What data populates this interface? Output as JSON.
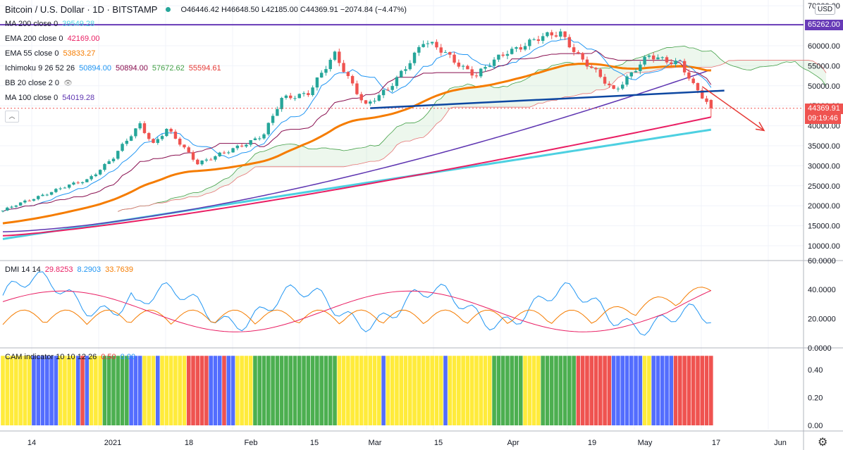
{
  "header": {
    "symbol": "Bitcoin / U.S. Dollar · 1D · BITSTAMP",
    "ohlc": "O46446.42 H46648.50 L42185.00 C44369.91 −2074.84 (−4.47%)"
  },
  "currency_button": "USD",
  "price_axis": {
    "labels": [
      "70000.00",
      "60000.00",
      "55000.00",
      "50000.00",
      "45000.00",
      "40000.00",
      "35000.00",
      "30000.00",
      "25000.00",
      "20000.00",
      "15000.00",
      "10000.00"
    ],
    "values": [
      70000,
      60000,
      55000,
      50000,
      45000,
      40000,
      35000,
      30000,
      25000,
      20000,
      15000,
      10000
    ],
    "tag_level": "65262.00",
    "tag_last": "44369.91",
    "tag_countdown": "09:19:46"
  },
  "dmi_axis": {
    "labels": [
      "60.0000",
      "40.0000",
      "20.0000",
      "0.0000"
    ],
    "values": [
      60,
      40,
      20,
      0
    ]
  },
  "cam_axis": {
    "labels": [
      "0.40",
      "0.20",
      "0.00"
    ],
    "values": [
      0.4,
      0.2,
      0.0
    ]
  },
  "time_axis": {
    "labels": [
      "14",
      "2021",
      "18",
      "Feb",
      "15",
      "Mar",
      "15",
      "Apr",
      "19",
      "May",
      "17",
      "Jun"
    ]
  },
  "legend": [
    {
      "label": "MA 200 close 0",
      "values": [
        {
          "v": "39549.28",
          "color": "#4dd0e1"
        }
      ]
    },
    {
      "label": "EMA 200 close 0",
      "values": [
        {
          "v": "42169.00",
          "color": "#e91e63"
        }
      ]
    },
    {
      "label": "EMA 55 close 0",
      "values": [
        {
          "v": "53833.27",
          "color": "#f57c00"
        }
      ]
    },
    {
      "label": "Ichimoku 9 26 52 26",
      "values": [
        {
          "v": "50894.00",
          "color": "#2196f3"
        },
        {
          "v": "50894.00",
          "color": "#880e4f"
        },
        {
          "v": "57672.62",
          "color": "#43a047"
        },
        {
          "v": "55594.61",
          "color": "#e53935"
        }
      ]
    },
    {
      "label": "BB 20 close 2 0",
      "values": []
    },
    {
      "label": "MA 100 close 0",
      "values": [
        {
          "v": "54019.28",
          "color": "#5e35b1"
        }
      ]
    }
  ],
  "dmi_legend": {
    "label": "DMI 14 14",
    "values": [
      {
        "v": "29.8253",
        "color": "#e91e63"
      },
      {
        "v": "8.2903",
        "color": "#2196f3"
      },
      {
        "v": "33.7639",
        "color": "#f57c00"
      }
    ]
  },
  "cam_legend": {
    "label": "CAM indicator 10 10 12 26",
    "values": [
      {
        "v": "0.50",
        "color": "#e53935"
      },
      {
        "v": "0.00",
        "color": "#2196f3"
      }
    ]
  },
  "colors": {
    "up": "#26a69a",
    "down": "#ef5350",
    "level": "#673ab7",
    "trend": "#0d47a1",
    "arrow": "#e53935"
  },
  "chart_data": {
    "type": "candlestick",
    "title": "Bitcoin / U.S. Dollar · 1D · BITSTAMP",
    "last_close": 44369.91,
    "horizontal_level": 65262.0,
    "ylim": [
      7000,
      71000
    ],
    "approx_close_path": [
      {
        "x": "Dec 8",
        "close": 18800
      },
      {
        "x": "Dec 17",
        "close": 22800
      },
      {
        "x": "Dec 27",
        "close": 26500
      },
      {
        "x": "Jan 2",
        "close": 32000
      },
      {
        "x": "Jan 8",
        "close": 40500
      },
      {
        "x": "Jan 11",
        "close": 35500
      },
      {
        "x": "Jan 14",
        "close": 39000
      },
      {
        "x": "Jan 21",
        "close": 30800
      },
      {
        "x": "Jan 28",
        "close": 33500
      },
      {
        "x": "Feb 5",
        "close": 38000
      },
      {
        "x": "Feb 9",
        "close": 46500
      },
      {
        "x": "Feb 15",
        "close": 48500
      },
      {
        "x": "Feb 21",
        "close": 57500
      },
      {
        "x": "Feb 28",
        "close": 45200
      },
      {
        "x": "Mar 5",
        "close": 48800
      },
      {
        "x": "Mar 13",
        "close": 61100
      },
      {
        "x": "Mar 18",
        "close": 58000
      },
      {
        "x": "Mar 25",
        "close": 52500
      },
      {
        "x": "Apr 1",
        "close": 58800
      },
      {
        "x": "Apr 13",
        "close": 63500
      },
      {
        "x": "Apr 18",
        "close": 56200
      },
      {
        "x": "Apr 25",
        "close": 49000
      },
      {
        "x": "May 3",
        "close": 57200
      },
      {
        "x": "May 10",
        "close": 56000
      },
      {
        "x": "May 13",
        "close": 49800
      },
      {
        "x": "May 17",
        "close": 44369.91
      }
    ],
    "dmi": {
      "plus_di_last": 8.2903,
      "minus_di_last": 33.7639,
      "adx_last": 29.8253
    },
    "cam_colors": [
      "yellow",
      "blue",
      "green",
      "red"
    ]
  }
}
